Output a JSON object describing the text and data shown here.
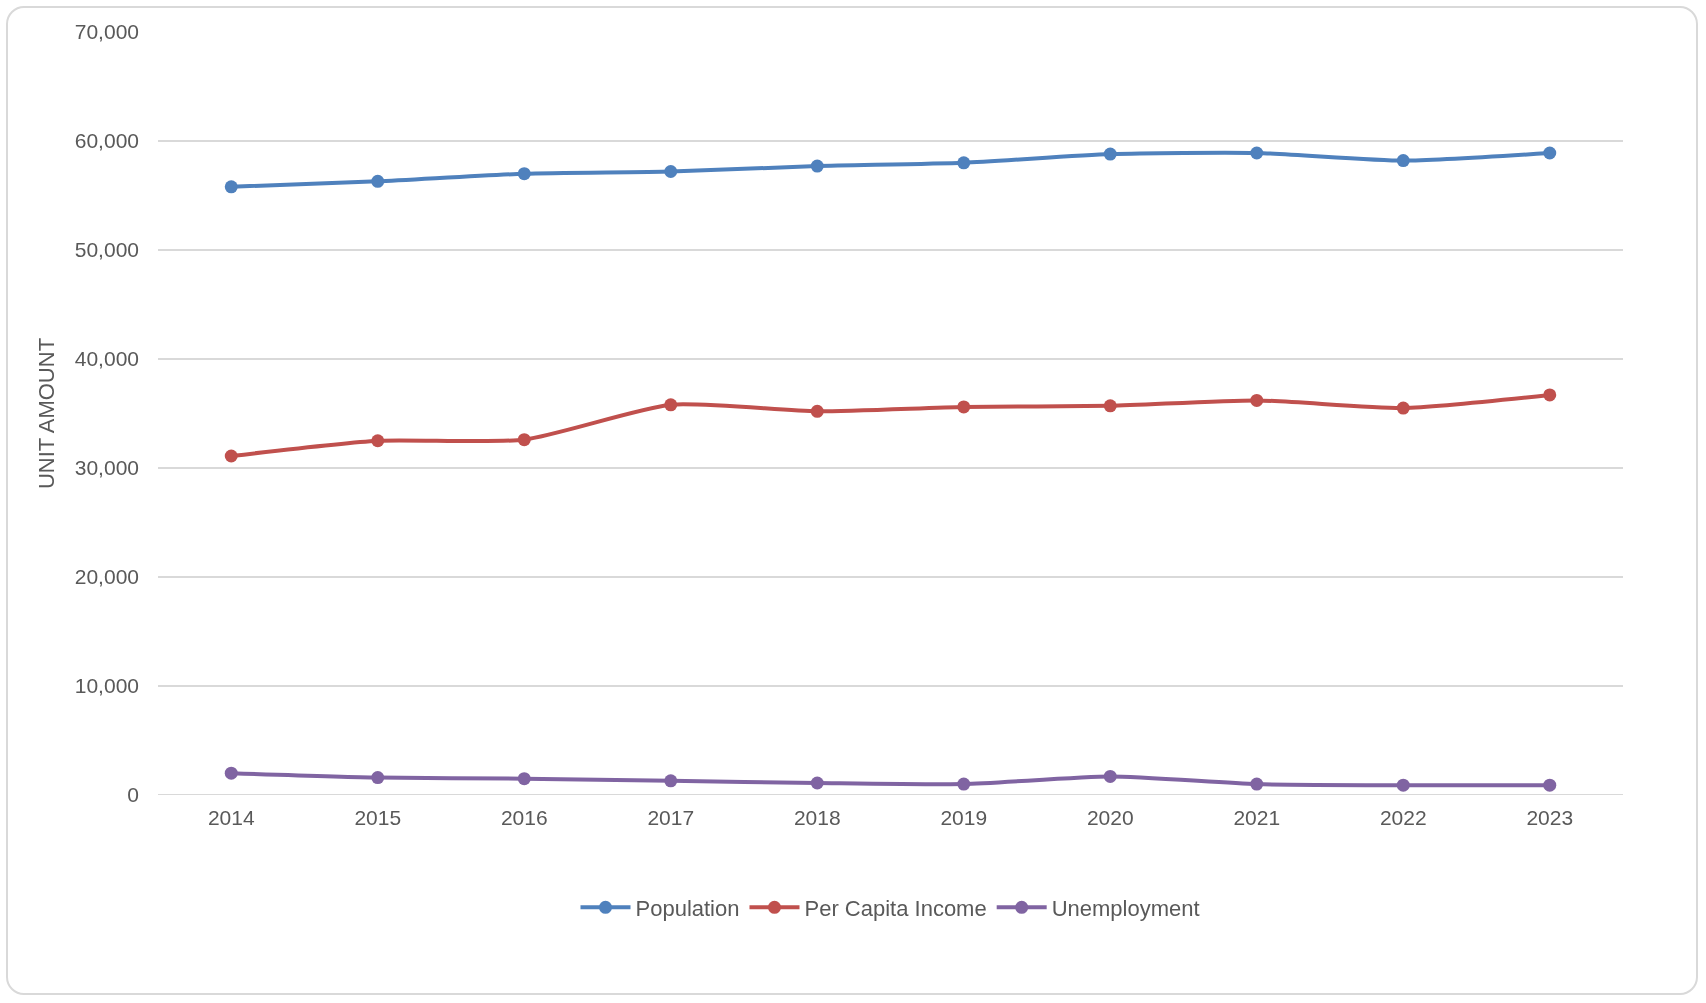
{
  "chart_data": {
    "type": "line",
    "ylabel": "UNIT AMOUNT",
    "categories": [
      "2014",
      "2015",
      "2016",
      "2017",
      "2018",
      "2019",
      "2020",
      "2021",
      "2022",
      "2023"
    ],
    "series": [
      {
        "name": "Population",
        "color": "#4f81bd",
        "values": [
          55800,
          56300,
          57000,
          57200,
          57700,
          58000,
          58800,
          58900,
          58200,
          58900
        ]
      },
      {
        "name": "Per Capita Income",
        "color": "#c0504d",
        "values": [
          31100,
          32500,
          32600,
          35800,
          35200,
          35600,
          35700,
          36200,
          35500,
          36700
        ]
      },
      {
        "name": "Unemployment",
        "color": "#8064a2",
        "values": [
          2000,
          1600,
          1500,
          1300,
          1100,
          1000,
          1700,
          1000,
          900,
          900
        ]
      }
    ],
    "ylim": [
      0,
      70000
    ],
    "yticks": [
      {
        "value": 0,
        "label": "0"
      },
      {
        "value": 10000,
        "label": "10,000"
      },
      {
        "value": 20000,
        "label": "20,000"
      },
      {
        "value": 30000,
        "label": "30,000"
      },
      {
        "value": 40000,
        "label": "40,000"
      },
      {
        "value": 50000,
        "label": "50,000"
      },
      {
        "value": 60000,
        "label": "60,000"
      },
      {
        "value": 70000,
        "label": "70,000"
      }
    ],
    "grid": "y",
    "legend": "bottom",
    "marker": "circle",
    "line_style": "solid"
  }
}
